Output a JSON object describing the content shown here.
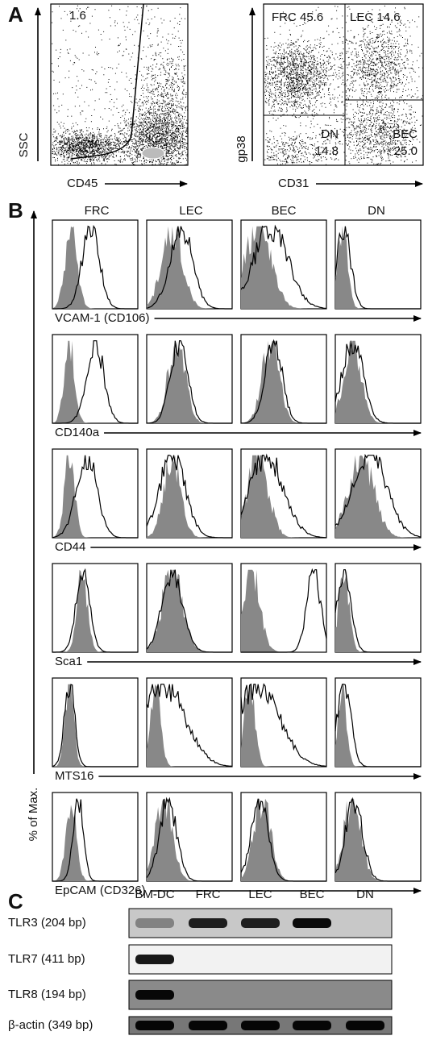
{
  "panel_a": {
    "label": "A",
    "plot1": {
      "gate_value": "1.6",
      "y_axis": "SSC",
      "x_axis": "CD45"
    },
    "plot2": {
      "frc": "FRC 45.6",
      "lec": "LEC 14.6",
      "dn": "DN",
      "dn_value": "14.8",
      "bec": "BEC",
      "bec_value": "25.0",
      "y_axis": "gp38",
      "x_axis": "CD31"
    }
  },
  "panel_b": {
    "label": "B",
    "columns": [
      "FRC",
      "LEC",
      "BEC",
      "DN"
    ],
    "rows": [
      "VCAM-1 (CD106)",
      "CD140a",
      "CD44",
      "Sca1",
      "MTS16",
      "EpCAM (CD326)"
    ],
    "y_axis": "% of Max."
  },
  "panel_c": {
    "label": "C",
    "lanes": [
      "BM-DC",
      "FRC",
      "LEC",
      "BEC",
      "DN"
    ],
    "rows": [
      "TLR3 (204 bp)",
      "TLR7 (411 bp)",
      "TLR8 (194 bp)",
      "β-actin (349 bp)"
    ]
  }
}
